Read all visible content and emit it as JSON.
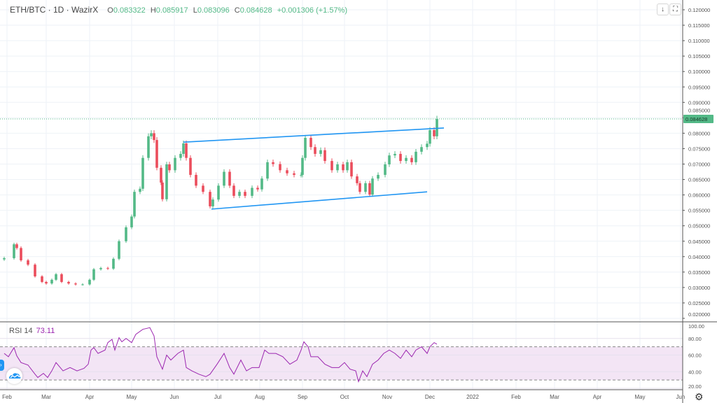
{
  "header": {
    "symbol": "ETH/BTC · 1D · WazirX",
    "open_label": "O",
    "open": "0.083322",
    "high_label": "H",
    "high": "0.085917",
    "low_label": "L",
    "low": "0.083096",
    "close_label": "C",
    "close": "0.084628",
    "change": "+0.001306 (+1.57%)"
  },
  "buttons": {
    "scroll_icon": "arrow-down-icon",
    "fullscreen_icon": "fullscreen-icon"
  },
  "last_price_label": "0.084628",
  "colors": {
    "up": "#53b987",
    "down": "#eb4d5c",
    "trendline": "#2196f3",
    "rsi": "#9c27b0",
    "rsi_band": "#f3e5f5",
    "last_price": "#53b987"
  },
  "rsi": {
    "label": "RSI 14",
    "value": "73.11"
  },
  "chart_data": [
    {
      "type": "candlestick",
      "title": "ETH/BTC · 1D · WazirX",
      "ylim": [
        0.02,
        0.12
      ],
      "y_ticks": [
        "0.120000",
        "0.115000",
        "0.110000",
        "0.105000",
        "0.100000",
        "0.095000",
        "0.090000",
        "0.085000",
        "0.080000",
        "0.075000",
        "0.070000",
        "0.065000",
        "0.060000",
        "0.055000",
        "0.050000",
        "0.045000",
        "0.040000",
        "0.035000",
        "0.030000",
        "0.025000",
        "0.020000"
      ],
      "x_ticks": [
        "Feb",
        "Mar",
        "Apr",
        "May",
        "Jun",
        "Jul",
        "Aug",
        "Sep",
        "Oct",
        "Nov",
        "Dec",
        "2022",
        "Feb",
        "Mar",
        "Apr",
        "May",
        "Jun"
      ],
      "grid": true,
      "closes": [
        [
          "2021-01-30",
          0.0395
        ],
        [
          "2021-02-06",
          0.044
        ],
        [
          "2021-02-08",
          0.0428
        ],
        [
          "2021-02-11",
          0.0388
        ],
        [
          "2021-02-16",
          0.0374
        ],
        [
          "2021-02-21",
          0.0336
        ],
        [
          "2021-02-26",
          0.0318
        ],
        [
          "2021-03-01",
          0.0313
        ],
        [
          "2021-03-05",
          0.0325
        ],
        [
          "2021-03-08",
          0.0343
        ],
        [
          "2021-03-12",
          0.0318
        ],
        [
          "2021-03-17",
          0.0313
        ],
        [
          "2021-03-22",
          0.031
        ],
        [
          "2021-03-27",
          0.031
        ],
        [
          "2021-04-01",
          0.0325
        ],
        [
          "2021-04-04",
          0.0359
        ],
        [
          "2021-04-09",
          0.0363
        ],
        [
          "2021-04-14",
          0.0361
        ],
        [
          "2021-04-18",
          0.0393
        ],
        [
          "2021-04-22",
          0.045
        ],
        [
          "2021-04-27",
          0.0495
        ],
        [
          "2021-05-01",
          0.053
        ],
        [
          "2021-05-03",
          0.061
        ],
        [
          "2021-05-07",
          0.062
        ],
        [
          "2021-05-09",
          0.072
        ],
        [
          "2021-05-13",
          0.079
        ],
        [
          "2021-05-15",
          0.08
        ],
        [
          "2021-05-17",
          0.0778
        ],
        [
          "2021-05-19",
          0.0688
        ],
        [
          "2021-05-22",
          0.064
        ],
        [
          "2021-05-23",
          0.0586
        ],
        [
          "2021-05-26",
          0.0699
        ],
        [
          "2021-05-28",
          0.068
        ],
        [
          "2021-06-01",
          0.072
        ],
        [
          "2021-06-05",
          0.0733
        ],
        [
          "2021-06-07",
          0.0767
        ],
        [
          "2021-06-09",
          0.072
        ],
        [
          "2021-06-12",
          0.0665
        ],
        [
          "2021-06-16",
          0.063
        ],
        [
          "2021-06-21",
          0.061
        ],
        [
          "2021-06-26",
          0.0563
        ],
        [
          "2021-06-28",
          0.0585
        ],
        [
          "2021-07-02",
          0.063
        ],
        [
          "2021-07-06",
          0.0675
        ],
        [
          "2021-07-10",
          0.063
        ],
        [
          "2021-07-13",
          0.0597
        ],
        [
          "2021-07-17",
          0.061
        ],
        [
          "2021-07-21",
          0.0597
        ],
        [
          "2021-07-26",
          0.0623
        ],
        [
          "2021-07-30",
          0.0618
        ],
        [
          "2021-08-02",
          0.0653
        ],
        [
          "2021-08-06",
          0.0706
        ],
        [
          "2021-08-10",
          0.07
        ],
        [
          "2021-08-15",
          0.068
        ],
        [
          "2021-08-20",
          0.067
        ],
        [
          "2021-08-25",
          0.0665
        ],
        [
          "2021-08-30",
          0.0665
        ],
        [
          "2021-08-31",
          0.072
        ],
        [
          "2021-09-02",
          0.0785
        ],
        [
          "2021-09-06",
          0.0755
        ],
        [
          "2021-09-09",
          0.0733
        ],
        [
          "2021-09-13",
          0.0745
        ],
        [
          "2021-09-16",
          0.071
        ],
        [
          "2021-09-21",
          0.068
        ],
        [
          "2021-09-25",
          0.0699
        ],
        [
          "2021-09-29",
          0.068
        ],
        [
          "2021-10-02",
          0.0706
        ],
        [
          "2021-10-05",
          0.066
        ],
        [
          "2021-10-09",
          0.0638
        ],
        [
          "2021-10-11",
          0.061
        ],
        [
          "2021-10-15",
          0.0638
        ],
        [
          "2021-10-18",
          0.0601
        ],
        [
          "2021-10-20",
          0.0653
        ],
        [
          "2021-10-24",
          0.0665
        ],
        [
          "2021-10-29",
          0.0699
        ],
        [
          "2021-11-01",
          0.0728
        ],
        [
          "2021-11-05",
          0.0733
        ],
        [
          "2021-11-09",
          0.071
        ],
        [
          "2021-11-13",
          0.072
        ],
        [
          "2021-11-17",
          0.0706
        ],
        [
          "2021-11-20",
          0.074
        ],
        [
          "2021-11-24",
          0.0755
        ],
        [
          "2021-11-28",
          0.0766
        ],
        [
          "2021-11-30",
          0.081
        ],
        [
          "2021-12-03",
          0.079
        ],
        [
          "2021-12-05",
          0.084628
        ]
      ],
      "last_close": 0.084628,
      "trendlines": [
        {
          "from": [
            "2021-06-07",
            0.0771
          ],
          "to": [
            "2021-12-10",
            0.0817
          ]
        },
        {
          "from": [
            "2021-06-27",
            0.0554
          ],
          "to": [
            "2021-11-28",
            0.061
          ]
        }
      ]
    },
    {
      "type": "line",
      "title": "RSI 14",
      "ylim": [
        20,
        100
      ],
      "y_ticks": [
        "100.00",
        "80.00",
        "60.00",
        "40.00",
        "20.00"
      ],
      "band": [
        30,
        70
      ],
      "values": [
        [
          "2021-01-30",
          62
        ],
        [
          "2021-02-02",
          58
        ],
        [
          "2021-02-06",
          69
        ],
        [
          "2021-02-08",
          59
        ],
        [
          "2021-02-11",
          51
        ],
        [
          "2021-02-16",
          48
        ],
        [
          "2021-02-21",
          37
        ],
        [
          "2021-02-23",
          33
        ],
        [
          "2021-02-27",
          38
        ],
        [
          "2021-03-02",
          33
        ],
        [
          "2021-03-05",
          41
        ],
        [
          "2021-03-08",
          51
        ],
        [
          "2021-03-13",
          41
        ],
        [
          "2021-03-18",
          45
        ],
        [
          "2021-03-23",
          41
        ],
        [
          "2021-03-28",
          44
        ],
        [
          "2021-03-31",
          49
        ],
        [
          "2021-04-02",
          66
        ],
        [
          "2021-04-04",
          69
        ],
        [
          "2021-04-07",
          62
        ],
        [
          "2021-04-12",
          66
        ],
        [
          "2021-04-14",
          75
        ],
        [
          "2021-04-17",
          79
        ],
        [
          "2021-04-19",
          66
        ],
        [
          "2021-04-22",
          81
        ],
        [
          "2021-04-24",
          76
        ],
        [
          "2021-04-27",
          80
        ],
        [
          "2021-05-01",
          75
        ],
        [
          "2021-05-04",
          85
        ],
        [
          "2021-05-09",
          91
        ],
        [
          "2021-05-14",
          93
        ],
        [
          "2021-05-17",
          83
        ],
        [
          "2021-05-19",
          58
        ],
        [
          "2021-05-23",
          43
        ],
        [
          "2021-05-26",
          60
        ],
        [
          "2021-05-29",
          54
        ],
        [
          "2021-06-03",
          62
        ],
        [
          "2021-06-07",
          66
        ],
        [
          "2021-06-09",
          45
        ],
        [
          "2021-06-13",
          41
        ],
        [
          "2021-06-18",
          37
        ],
        [
          "2021-06-23",
          34
        ],
        [
          "2021-06-26",
          37
        ],
        [
          "2021-07-01",
          49
        ],
        [
          "2021-07-06",
          62
        ],
        [
          "2021-07-10",
          45
        ],
        [
          "2021-07-13",
          37
        ],
        [
          "2021-07-18",
          54
        ],
        [
          "2021-07-22",
          41
        ],
        [
          "2021-07-26",
          45
        ],
        [
          "2021-07-31",
          45
        ],
        [
          "2021-08-04",
          66
        ],
        [
          "2021-08-07",
          62
        ],
        [
          "2021-08-12",
          62
        ],
        [
          "2021-08-17",
          58
        ],
        [
          "2021-08-22",
          49
        ],
        [
          "2021-08-27",
          54
        ],
        [
          "2021-08-30",
          66
        ],
        [
          "2021-09-01",
          76
        ],
        [
          "2021-09-04",
          70
        ],
        [
          "2021-09-06",
          58
        ],
        [
          "2021-09-11",
          58
        ],
        [
          "2021-09-16",
          49
        ],
        [
          "2021-09-21",
          45
        ],
        [
          "2021-09-26",
          45
        ],
        [
          "2021-09-30",
          51
        ],
        [
          "2021-10-04",
          43
        ],
        [
          "2021-10-08",
          41
        ],
        [
          "2021-10-10",
          28
        ],
        [
          "2021-10-13",
          41
        ],
        [
          "2021-10-16",
          34
        ],
        [
          "2021-10-20",
          49
        ],
        [
          "2021-10-24",
          54
        ],
        [
          "2021-10-28",
          62
        ],
        [
          "2021-11-01",
          66
        ],
        [
          "2021-11-05",
          62
        ],
        [
          "2021-11-09",
          56
        ],
        [
          "2021-11-13",
          66
        ],
        [
          "2021-11-17",
          58
        ],
        [
          "2021-11-20",
          66
        ],
        [
          "2021-11-24",
          70
        ],
        [
          "2021-11-28",
          62
        ],
        [
          "2021-11-30",
          70
        ],
        [
          "2021-12-03",
          75
        ],
        [
          "2021-12-05",
          73.11
        ]
      ]
    }
  ]
}
